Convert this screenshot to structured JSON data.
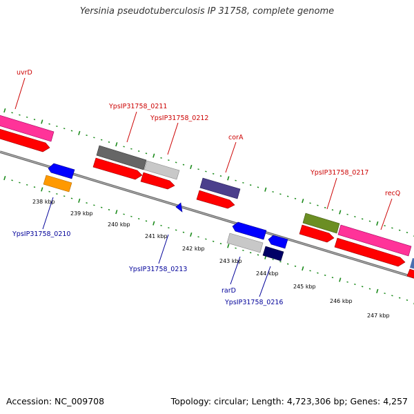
{
  "title": "Yersinia pseudotuberculosis IP 31758, complete genome",
  "footer": {
    "accession": "Accession: NC_009708",
    "topology": "Topology: circular; Length: 4,723,306 bp; Genes: 4,257"
  },
  "colors": {
    "forward_label": "#cc0000",
    "reverse_label": "#000099",
    "backbone": "#777777",
    "tick_green": "#1a8a1a",
    "cds": "#ff0000"
  },
  "scale_labels": [
    "238 kbp",
    "239 kbp",
    "240 kbp",
    "241 kbp",
    "242 kbp",
    "243 kbp",
    "244 kbp",
    "245 kbp",
    "246 kbp",
    "247 kbp"
  ],
  "forward_genes": [
    {
      "name": "uvrD",
      "color": "#ff3399"
    },
    {
      "name": "YpsIP31758_0211",
      "color": "#666666"
    },
    {
      "name": "YpsIP31758_0212",
      "color": "#c8c8c8"
    },
    {
      "name": "corA",
      "color": "#4b3f8c"
    },
    {
      "name": "YpsIP31758_0217",
      "color": "#6b8e23"
    },
    {
      "name": "recQ",
      "color": "#ff3399"
    }
  ],
  "reverse_genes": [
    {
      "name": "YpsIP31758_0210",
      "color": "#ff9900"
    },
    {
      "name": "YpsIP31758_0213",
      "color": "#0000ff"
    },
    {
      "name": "rarD",
      "color": "#c8c8c8"
    },
    {
      "name": "YpsIP31758_0216",
      "color": "#000066"
    }
  ]
}
